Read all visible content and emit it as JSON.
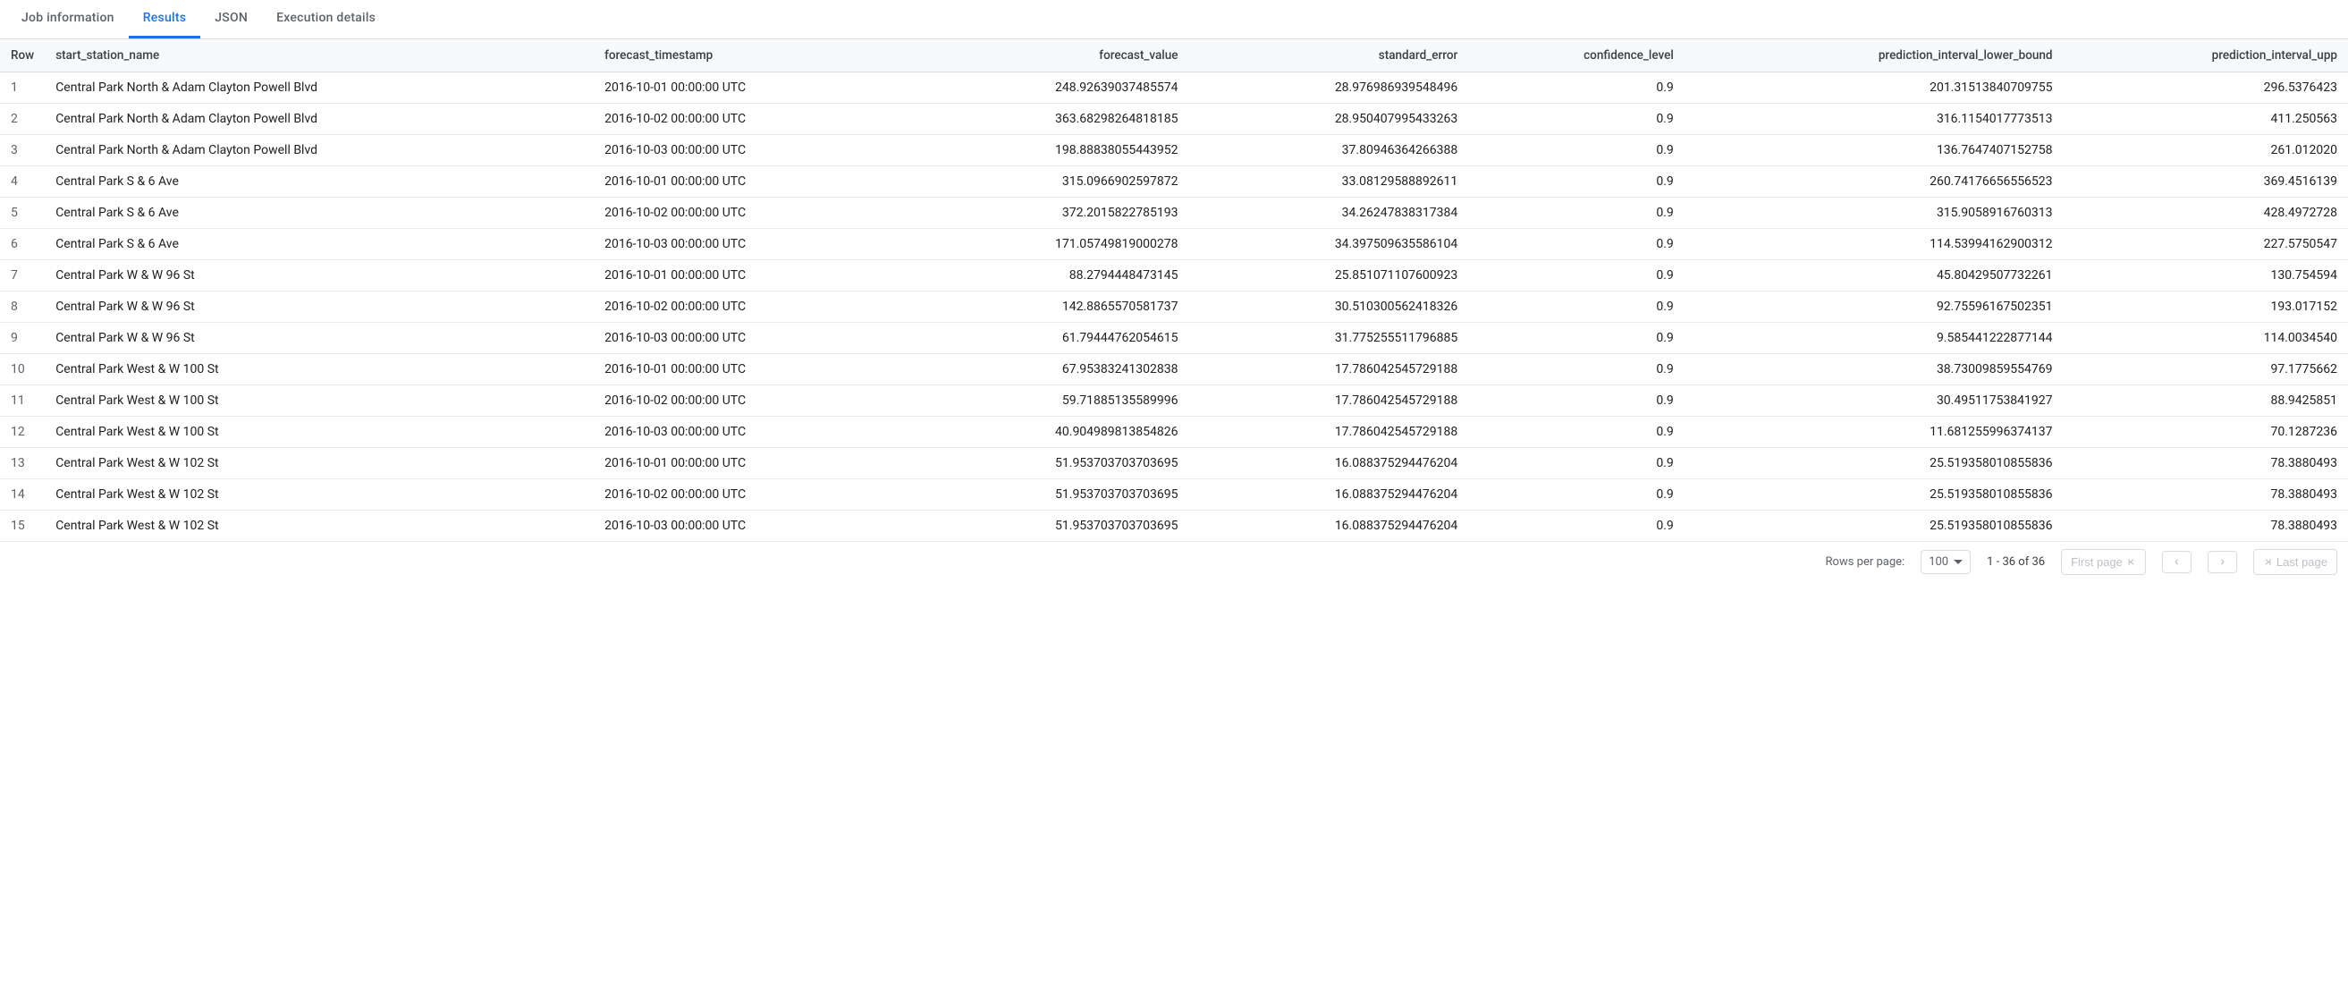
{
  "tabs": [
    {
      "label": "Job information",
      "active": false
    },
    {
      "label": "Results",
      "active": true
    },
    {
      "label": "JSON",
      "active": false
    },
    {
      "label": "Execution details",
      "active": false
    }
  ],
  "table": {
    "columns": [
      {
        "key": "row",
        "label": "Row",
        "align": "left"
      },
      {
        "key": "start_station_name",
        "label": "start_station_name",
        "align": "left"
      },
      {
        "key": "forecast_timestamp",
        "label": "forecast_timestamp",
        "align": "left"
      },
      {
        "key": "forecast_value",
        "label": "forecast_value",
        "align": "right"
      },
      {
        "key": "standard_error",
        "label": "standard_error",
        "align": "right"
      },
      {
        "key": "confidence_level",
        "label": "confidence_level",
        "align": "right"
      },
      {
        "key": "prediction_interval_lower_bound",
        "label": "prediction_interval_lower_bound",
        "align": "right"
      },
      {
        "key": "prediction_interval_upper_bound",
        "label": "prediction_interval_upp",
        "align": "right"
      }
    ],
    "rows": [
      [
        "1",
        "Central Park North & Adam Clayton Powell Blvd",
        "2016-10-01 00:00:00 UTC",
        "248.92639037485574",
        "28.976986939548496",
        "0.9",
        "201.31513840709755",
        "296.5376423"
      ],
      [
        "2",
        "Central Park North & Adam Clayton Powell Blvd",
        "2016-10-02 00:00:00 UTC",
        "363.68298264818185",
        "28.950407995433263",
        "0.9",
        "316.1154017773513",
        "411.250563"
      ],
      [
        "3",
        "Central Park North & Adam Clayton Powell Blvd",
        "2016-10-03 00:00:00 UTC",
        "198.88838055443952",
        "37.80946364266388",
        "0.9",
        "136.7647407152758",
        "261.012020"
      ],
      [
        "4",
        "Central Park S & 6 Ave",
        "2016-10-01 00:00:00 UTC",
        "315.0966902597872",
        "33.08129588892611",
        "0.9",
        "260.74176656556523",
        "369.4516139"
      ],
      [
        "5",
        "Central Park S & 6 Ave",
        "2016-10-02 00:00:00 UTC",
        "372.2015822785193",
        "34.26247838317384",
        "0.9",
        "315.9058916760313",
        "428.4972728"
      ],
      [
        "6",
        "Central Park S & 6 Ave",
        "2016-10-03 00:00:00 UTC",
        "171.05749819000278",
        "34.397509635586104",
        "0.9",
        "114.53994162900312",
        "227.5750547"
      ],
      [
        "7",
        "Central Park W & W 96 St",
        "2016-10-01 00:00:00 UTC",
        "88.2794448473145",
        "25.851071107600923",
        "0.9",
        "45.80429507732261",
        "130.754594"
      ],
      [
        "8",
        "Central Park W & W 96 St",
        "2016-10-02 00:00:00 UTC",
        "142.8865570581737",
        "30.510300562418326",
        "0.9",
        "92.75596167502351",
        "193.017152"
      ],
      [
        "9",
        "Central Park W & W 96 St",
        "2016-10-03 00:00:00 UTC",
        "61.79444762054615",
        "31.775255511796885",
        "0.9",
        "9.585441222877144",
        "114.0034540"
      ],
      [
        "10",
        "Central Park West & W 100 St",
        "2016-10-01 00:00:00 UTC",
        "67.95383241302838",
        "17.786042545729188",
        "0.9",
        "38.73009859554769",
        "97.1775662"
      ],
      [
        "11",
        "Central Park West & W 100 St",
        "2016-10-02 00:00:00 UTC",
        "59.71885135589996",
        "17.786042545729188",
        "0.9",
        "30.49511753841927",
        "88.9425851"
      ],
      [
        "12",
        "Central Park West & W 100 St",
        "2016-10-03 00:00:00 UTC",
        "40.904989813854826",
        "17.786042545729188",
        "0.9",
        "11.681255996374137",
        "70.1287236"
      ],
      [
        "13",
        "Central Park West & W 102 St",
        "2016-10-01 00:00:00 UTC",
        "51.953703703703695",
        "16.088375294476204",
        "0.9",
        "25.519358010855836",
        "78.3880493"
      ],
      [
        "14",
        "Central Park West & W 102 St",
        "2016-10-02 00:00:00 UTC",
        "51.953703703703695",
        "16.088375294476204",
        "0.9",
        "25.519358010855836",
        "78.3880493"
      ],
      [
        "15",
        "Central Park West & W 102 St",
        "2016-10-03 00:00:00 UTC",
        "51.953703703703695",
        "16.088375294476204",
        "0.9",
        "25.519358010855836",
        "78.3880493"
      ]
    ]
  },
  "pagination": {
    "rows_per_page_label": "Rows per page:",
    "page_size": "100",
    "range_text": "1 - 36 of 36",
    "first_page_label": "First page",
    "last_page_label": "Last page"
  }
}
